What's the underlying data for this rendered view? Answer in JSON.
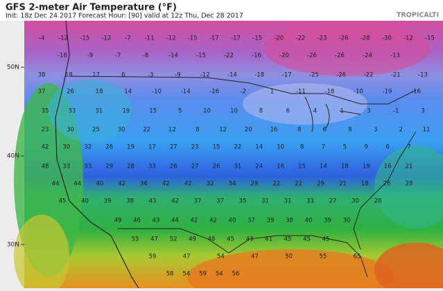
{
  "header": {
    "title": "GFS 2-meter Air Temperature (°F)",
    "subtitle": "Init: 18z Dec 24 2017   Forecast Hour: [90]   valid at 12z Thu, Dec 28 2017",
    "brand": "TROPICALTI"
  },
  "latitudes": [
    "50N",
    "40N",
    "30N"
  ],
  "map": {
    "rows": [
      [
        -4,
        -12,
        -15,
        -12,
        -7,
        -11,
        -12,
        -15,
        -17,
        -17,
        -15,
        -20,
        -22,
        -23,
        -26,
        -28,
        -30,
        -12,
        -15
      ],
      [
        -18,
        -9,
        -7,
        -8,
        -14,
        -15,
        -22,
        -16,
        -20,
        -26,
        -26,
        -24,
        -13
      ],
      [
        38,
        18,
        17,
        6,
        -3,
        -9,
        -12,
        -14,
        -18,
        -17,
        -25,
        -26,
        -22,
        -21,
        -13
      ],
      [
        37,
        26,
        18,
        14,
        -10,
        -14,
        -16,
        -2,
        1,
        -11,
        -18,
        -10,
        -19,
        -16
      ],
      [
        35,
        33,
        31,
        19,
        15,
        5,
        10,
        10,
        8,
        6,
        4,
        1,
        3,
        -1,
        3
      ],
      [
        23,
        30,
        25,
        30,
        22,
        12,
        8,
        12,
        20,
        16,
        8,
        6,
        8,
        3,
        2,
        11
      ],
      [
        42,
        30,
        32,
        26,
        19,
        17,
        27,
        23,
        15,
        22,
        14,
        10,
        8,
        7,
        5,
        9,
        6,
        7
      ],
      [
        48,
        33,
        33,
        29,
        28,
        33,
        26,
        27,
        26,
        31,
        24,
        16,
        15,
        14,
        18,
        19,
        16,
        21
      ],
      [
        44,
        44,
        40,
        42,
        36,
        42,
        42,
        32,
        34,
        29,
        22,
        22,
        29,
        21,
        18,
        26,
        28
      ],
      [
        45,
        40,
        39,
        38,
        43,
        42,
        37,
        37,
        35,
        31,
        31,
        33,
        27,
        30,
        28
      ],
      [
        49,
        46,
        43,
        44,
        42,
        42,
        40,
        37,
        39,
        38,
        40,
        39,
        30
      ],
      [
        55,
        47,
        52,
        49,
        48,
        45,
        43,
        41,
        45,
        45,
        45
      ],
      [
        59,
        47,
        54,
        47,
        50,
        55,
        65
      ],
      [
        58,
        54,
        59,
        54,
        56
      ]
    ]
  }
}
